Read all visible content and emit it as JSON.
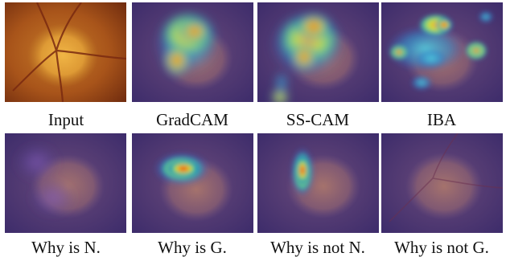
{
  "figure": {
    "panels": [
      {
        "caption": "Input",
        "overlay": "none"
      },
      {
        "caption": "GradCAM",
        "overlay": "gradcam"
      },
      {
        "caption": "SS-CAM",
        "overlay": "sscam"
      },
      {
        "caption": "IBA",
        "overlay": "iba"
      },
      {
        "caption": "Why is N.",
        "overlay": "why-n"
      },
      {
        "caption": "Why is G.",
        "overlay": "why-g"
      },
      {
        "caption": "Why is not N.",
        "overlay": "why-not-n"
      },
      {
        "caption": "Why is not G.",
        "overlay": "why-not-g"
      }
    ]
  }
}
